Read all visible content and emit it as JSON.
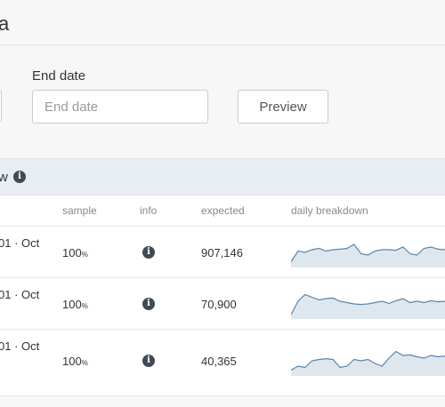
{
  "header": {
    "title": "a"
  },
  "form": {
    "end_date_label": "End date",
    "end_date_placeholder": "End date",
    "preview_label": "Preview"
  },
  "panel": {
    "title": "w",
    "info_icon": "info-icon",
    "columns": {
      "sample": "sample",
      "info": "info",
      "expected": "expected",
      "breakdown": "daily breakdown"
    },
    "rows": [
      {
        "date": "01 · Oct",
        "sample": "100",
        "sample_unit": "%",
        "expected": "907,146",
        "spark": [
          0.15,
          0.55,
          0.5,
          0.6,
          0.65,
          0.55,
          0.6,
          0.62,
          0.65,
          0.8,
          0.45,
          0.4,
          0.55,
          0.6,
          0.6,
          0.58,
          0.7,
          0.45,
          0.4,
          0.65,
          0.7,
          0.62,
          0.6
        ]
      },
      {
        "date": "01 · Oct",
        "sample": "100",
        "sample_unit": "%",
        "expected": "70,900",
        "spark": [
          0.1,
          0.6,
          0.85,
          0.75,
          0.65,
          0.7,
          0.72,
          0.6,
          0.55,
          0.5,
          0.48,
          0.5,
          0.55,
          0.6,
          0.52,
          0.62,
          0.7,
          0.55,
          0.6,
          0.55,
          0.62,
          0.58,
          0.6
        ]
      },
      {
        "date": "01 · Oct",
        "sample": "100",
        "sample_unit": "%",
        "expected": "40,365",
        "spark": [
          0.15,
          0.3,
          0.25,
          0.5,
          0.55,
          0.58,
          0.55,
          0.25,
          0.3,
          0.55,
          0.5,
          0.55,
          0.4,
          0.3,
          0.6,
          0.85,
          0.7,
          0.72,
          0.65,
          0.6,
          0.7,
          0.65,
          0.68
        ]
      }
    ]
  },
  "colors": {
    "spark_line": "#5b84a8",
    "spark_fill": "#dfe7ee",
    "header_bg": "#e8eef3"
  }
}
